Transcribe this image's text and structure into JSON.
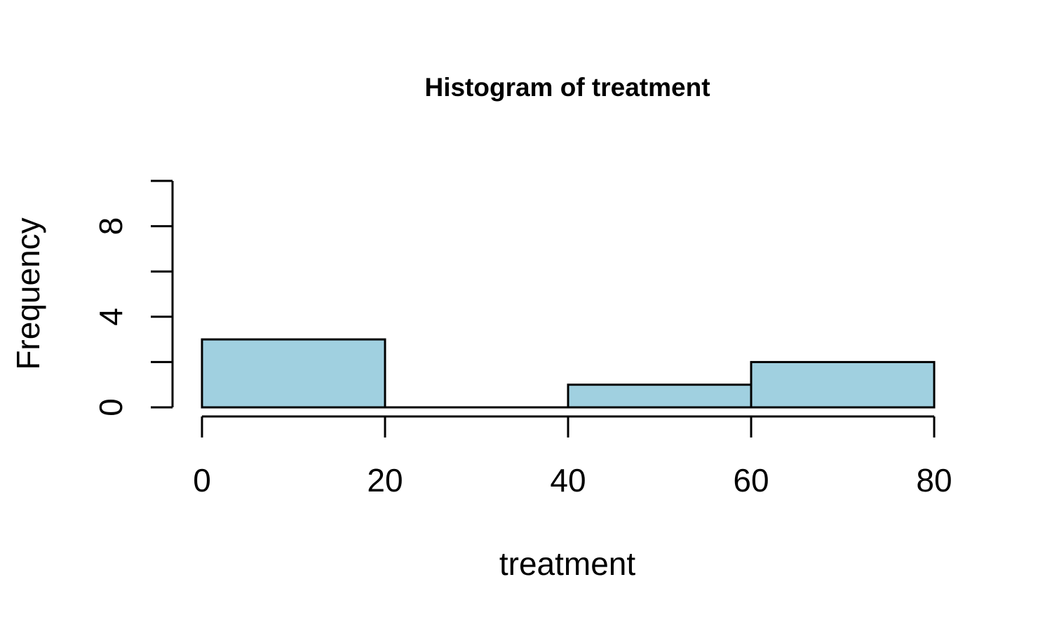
{
  "chart_data": {
    "type": "bar",
    "title": "Histogram of treatment",
    "xlabel": "treatment",
    "ylabel": "Frequency",
    "bins": [
      {
        "from": 0,
        "to": 20,
        "count": 3
      },
      {
        "from": 20,
        "to": 40,
        "count": 0
      },
      {
        "from": 40,
        "to": 60,
        "count": 1
      },
      {
        "from": 60,
        "to": 80,
        "count": 2
      }
    ],
    "xlim": [
      0,
      80
    ],
    "ylim": [
      0,
      10
    ],
    "x_ticks": [
      0,
      20,
      40,
      60,
      80
    ],
    "y_ticks": [
      0,
      2,
      4,
      6,
      8,
      10
    ],
    "y_tick_labels": [
      "0",
      "",
      "4",
      "",
      "8",
      ""
    ],
    "bar_color": "#a0d0e0",
    "grid": false,
    "legend": "none"
  }
}
